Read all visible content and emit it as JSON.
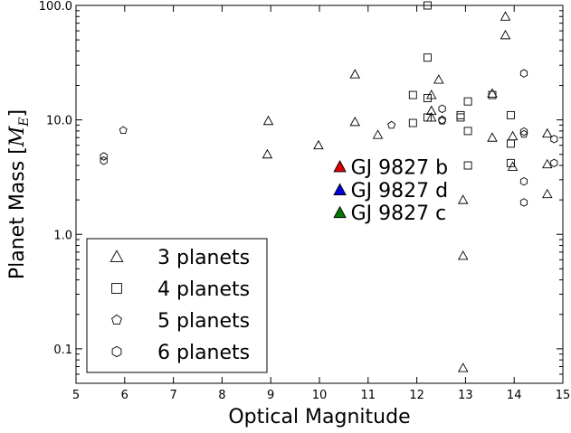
{
  "chart_data": {
    "type": "scatter",
    "xlabel": "Optical Magnitude",
    "ylabel_text": "Planet Mass [",
    "ylabel_math": "M",
    "ylabel_sub": "E",
    "ylabel_close": "]",
    "xlim": [
      5,
      15
    ],
    "ylim": [
      0.05,
      100
    ],
    "yscale": "log",
    "grid": false,
    "legend_position": "lower-left",
    "x_ticks": [
      5,
      6,
      7,
      8,
      9,
      10,
      11,
      12,
      13,
      14,
      15
    ],
    "x_tick_labels": [
      "5",
      "6",
      "7",
      "8",
      "9",
      "10",
      "11",
      "12",
      "13",
      "14",
      "15"
    ],
    "y_ticks": [
      0.1,
      1,
      10,
      100
    ],
    "y_tick_labels": [
      "0.1",
      "1.0",
      "10.0",
      "100.0"
    ],
    "series": [
      {
        "name": "3 planets",
        "marker": "triangle",
        "color": "#000000",
        "points": [
          [
            8.95,
            9.8
          ],
          [
            8.93,
            5.0
          ],
          [
            9.98,
            6.0
          ],
          [
            10.73,
            25.0
          ],
          [
            10.73,
            9.6
          ],
          [
            11.2,
            7.4
          ],
          [
            12.3,
            16.5
          ],
          [
            12.3,
            12.0
          ],
          [
            12.3,
            10.5
          ],
          [
            12.45,
            22.5
          ],
          [
            12.95,
            0.65
          ],
          [
            12.95,
            2.0
          ],
          [
            12.95,
            0.068
          ],
          [
            13.55,
            17.0
          ],
          [
            13.55,
            7.0
          ],
          [
            13.82,
            80.0
          ],
          [
            13.82,
            55.0
          ],
          [
            13.97,
            7.2
          ],
          [
            13.97,
            3.9
          ],
          [
            14.68,
            7.6
          ],
          [
            14.68,
            4.1
          ],
          [
            14.68,
            2.25
          ]
        ]
      },
      {
        "name": "4 planets",
        "marker": "square",
        "color": "#000000",
        "points": [
          [
            11.92,
            16.5
          ],
          [
            11.92,
            9.4
          ],
          [
            12.22,
            35.0
          ],
          [
            12.22,
            15.5
          ],
          [
            12.22,
            10.5
          ],
          [
            12.22,
            100.0
          ],
          [
            12.9,
            11.0
          ],
          [
            12.9,
            10.5
          ],
          [
            13.05,
            14.5
          ],
          [
            13.05,
            8.0
          ],
          [
            13.05,
            4.0
          ],
          [
            13.55,
            16.5
          ],
          [
            13.93,
            11.0
          ],
          [
            13.93,
            6.2
          ],
          [
            13.93,
            4.2
          ]
        ]
      },
      {
        "name": "5 planets",
        "marker": "pentagon",
        "color": "#000000",
        "points": [
          [
            5.97,
            8.1
          ],
          [
            11.48,
            9.0
          ],
          [
            12.52,
            9.8
          ],
          [
            14.2,
            7.5
          ]
        ]
      },
      {
        "name": "6 planets",
        "marker": "hexagon",
        "color": "#000000",
        "points": [
          [
            5.57,
            4.8
          ],
          [
            5.57,
            4.4
          ],
          [
            12.52,
            12.5
          ],
          [
            12.52,
            10.0
          ],
          [
            14.2,
            25.5
          ],
          [
            14.2,
            7.9
          ],
          [
            14.2,
            2.9
          ],
          [
            14.2,
            1.9
          ],
          [
            14.82,
            6.8
          ],
          [
            14.82,
            4.2
          ]
        ]
      }
    ],
    "highlighted": [
      {
        "label": "GJ 9827 b",
        "x": 10.42,
        "y": 3.9,
        "color": "#dd0000"
      },
      {
        "label": "GJ 9827 d",
        "x": 10.42,
        "y": 2.45,
        "color": "#0000dd"
      },
      {
        "label": "GJ 9827 c",
        "x": 10.42,
        "y": 1.55,
        "color": "#007700"
      }
    ]
  }
}
